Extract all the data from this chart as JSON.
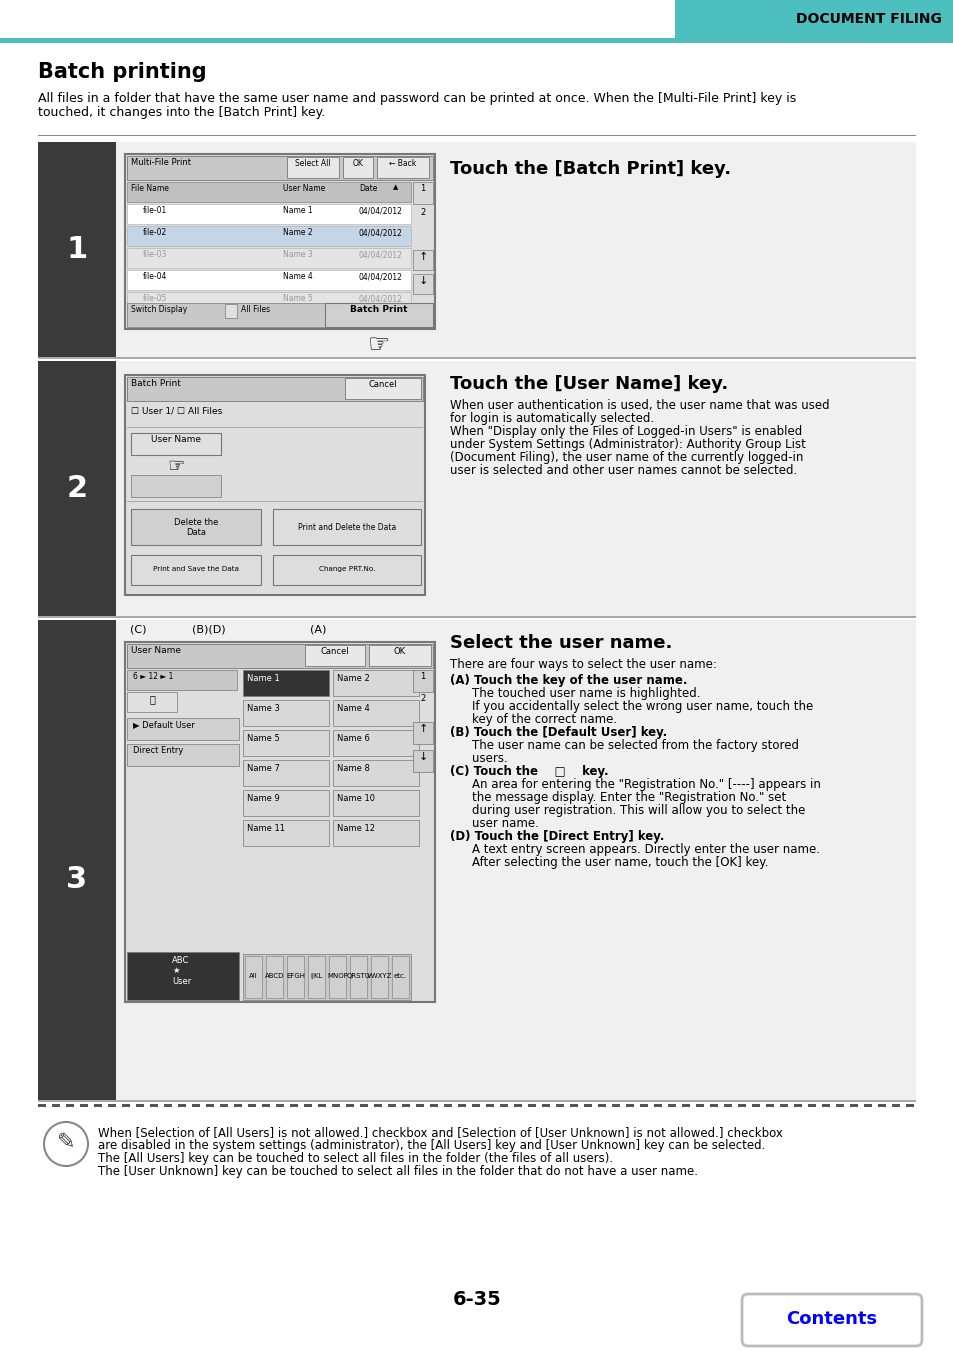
{
  "title": "Batch printing",
  "subtitle1": "All files in a folder that have the same user name and password can be printed at once. When the [Multi-File Print] key is",
  "subtitle2": "touched, it changes into the [Batch Print] key.",
  "header_text": "DOCUMENT FILING",
  "teal_color": "#4DBFBF",
  "page_number": "6-35",
  "contents_button_text": "Contents",
  "step1_heading": "Touch the [Batch Print] key.",
  "step2_heading": "Touch the [User Name] key.",
  "step2_body": [
    "When user authentication is used, the user name that was used",
    "for login is automatically selected.",
    "When \"Display only the Files of Logged-in Users\" is enabled",
    "under System Settings (Administrator): Authority Group List",
    "(Document Filing), the user name of the currently logged-in",
    "user is selected and other user names cannot be selected."
  ],
  "step3_heading": "Select the user name.",
  "step3_intro": "There are four ways to select the user name:",
  "step3_lines": [
    {
      "bold": true,
      "indent": false,
      "text": "(A) Touch the key of the user name."
    },
    {
      "bold": false,
      "indent": true,
      "text": "The touched user name is highlighted."
    },
    {
      "bold": false,
      "indent": true,
      "text": "If you accidentally select the wrong user name, touch the"
    },
    {
      "bold": false,
      "indent": true,
      "text": "key of the correct name."
    },
    {
      "bold": true,
      "indent": false,
      "text": "(B) Touch the [Default User] key."
    },
    {
      "bold": false,
      "indent": true,
      "text": "The user name can be selected from the factory stored"
    },
    {
      "bold": false,
      "indent": true,
      "text": "users."
    },
    {
      "bold": true,
      "indent": false,
      "text": "(C) Touch the    □    key."
    },
    {
      "bold": false,
      "indent": true,
      "text": "An area for entering the \"Registration No.\" [----] appears in"
    },
    {
      "bold": false,
      "indent": true,
      "text": "the message display. Enter the \"Registration No.\" set"
    },
    {
      "bold": false,
      "indent": true,
      "text": "during user registration. This will allow you to select the"
    },
    {
      "bold": false,
      "indent": true,
      "text": "user name."
    },
    {
      "bold": true,
      "indent": false,
      "text": "(D) Touch the [Direct Entry] key."
    },
    {
      "bold": false,
      "indent": true,
      "text": "A text entry screen appears. Directly enter the user name."
    },
    {
      "bold": false,
      "indent": true,
      "text": "After selecting the user name, touch the [OK] key."
    }
  ],
  "note_lines": [
    "When [Selection of [All Users] is not allowed.] checkbox and [Selection of [User Unknown] is not allowed.] checkbox",
    "are disabled in the system settings (administrator), the [All Users] key and [User Unknown] key can be selected.",
    "The [All Users] key can be touched to select all files in the folder (the files of all users).",
    "The [User Unknown] key can be touched to select all files in the folder that do not have a user name."
  ],
  "bg": "#FFFFFF",
  "dark_bg": "#3A3A3A",
  "light_bg": "#F0F0F0",
  "screen_bg": "#DEDEDE",
  "screen_dark": "#C8C8C8",
  "screen_border": "#777777"
}
